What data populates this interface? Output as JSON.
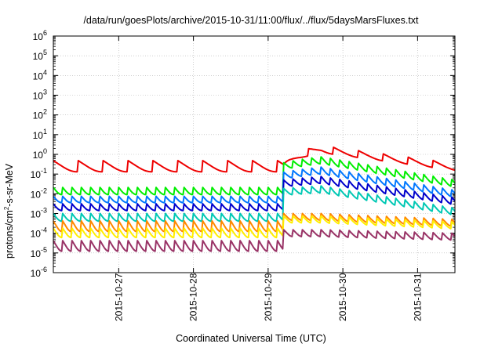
{
  "chart_data": {
    "type": "line",
    "title": "/data/run/goesPlots/archive/2015-10-31/11:00/flux/../flux/5daysMarsFluxes.txt",
    "xlabel": "Coordinated Universal Time (UTC)",
    "ylabel": {
      "pre": "protons/cm",
      "sup": "2",
      "post": "-s-sr-MeV"
    },
    "x_scale": "time",
    "y_scale": "log",
    "xlim": [
      "2015-10-26 03:00",
      "2015-10-31 12:00"
    ],
    "ylim": [
      1e-06,
      1000000.0
    ],
    "x_ticks": [
      "2015-10-27",
      "2015-10-28",
      "2015-10-29",
      "2015-10-30",
      "2015-10-31"
    ],
    "y_ticks": [
      {
        "base": "10",
        "exp": "-6"
      },
      {
        "base": "10",
        "exp": "-5"
      },
      {
        "base": "10",
        "exp": "-4"
      },
      {
        "base": "10",
        "exp": "-3"
      },
      {
        "base": "10",
        "exp": "-2"
      },
      {
        "base": "10",
        "exp": "-1"
      },
      {
        "base": "10",
        "exp": "0"
      },
      {
        "base": "10",
        "exp": "1"
      },
      {
        "base": "10",
        "exp": "2"
      },
      {
        "base": "10",
        "exp": "3"
      },
      {
        "base": "10",
        "exp": "4"
      },
      {
        "base": "10",
        "exp": "5"
      },
      {
        "base": "10",
        "exp": "6"
      }
    ],
    "grid": true,
    "event_time": "2015-10-29 05:00",
    "series": [
      {
        "color": "#ee0000",
        "pre_event": {
          "base": 0.13,
          "amp": 0.35,
          "period_hours": 8
        },
        "event": {
          "start": 0.25,
          "peak": 2.2,
          "end": 0.28
        }
      },
      {
        "color": "#00ee00",
        "pre_event": {
          "base": 0.009,
          "amp": 0.012,
          "period_hours": 3
        },
        "event": {
          "start": 0.3,
          "peak": 0.6,
          "end": 0.04
        }
      },
      {
        "color": "#0077ff",
        "pre_event": {
          "base": 0.0035,
          "amp": 0.004,
          "period_hours": 3
        },
        "event": {
          "start": 0.1,
          "peak": 0.18,
          "end": 0.012
        }
      },
      {
        "color": "#0000cc",
        "pre_event": {
          "base": 0.0014,
          "amp": 0.0017,
          "period_hours": 3
        },
        "event": {
          "start": 0.04,
          "peak": 0.06,
          "end": 0.005
        }
      },
      {
        "color": "#00c8b4",
        "pre_event": {
          "base": 0.0004,
          "amp": 0.0006,
          "period_hours": 3
        },
        "event": {
          "start": 0.015,
          "peak": 0.02,
          "end": 0.0015
        }
      },
      {
        "color": "#ff8800",
        "pre_event": {
          "base": 0.00012,
          "amp": 0.0003,
          "period_hours": 3
        },
        "event": {
          "start": 0.0008,
          "peak": 0.0008,
          "end": 0.0004
        }
      },
      {
        "color": "#ffee00",
        "pre_event": {
          "base": 6e-05,
          "amp": 0.00012,
          "period_hours": 3
        },
        "event": {
          "start": 0.0006,
          "peak": 0.0006,
          "end": 0.0003
        }
      },
      {
        "color": "#993366",
        "pre_event": {
          "base": 1.2e-05,
          "amp": 3e-05,
          "period_hours": 3
        },
        "event": {
          "start": 0.00012,
          "peak": 0.00012,
          "end": 8e-05
        }
      }
    ]
  }
}
